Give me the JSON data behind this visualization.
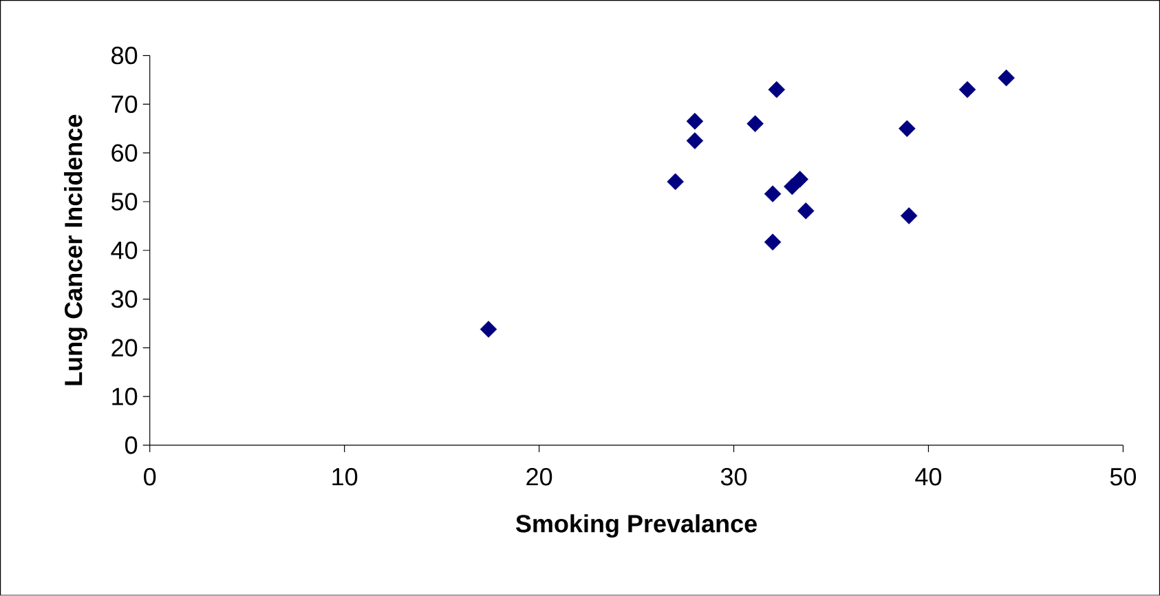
{
  "chart_data": {
    "type": "scatter",
    "xlabel": "Smoking Prevalance",
    "ylabel": "Lung Cancer Incidence",
    "x": [
      17.4,
      27.0,
      28.0,
      28.0,
      31.1,
      32.2,
      32.0,
      32.0,
      33.0,
      33.4,
      33.7,
      38.9,
      39.0,
      42.0,
      44.0
    ],
    "values": [
      23.8,
      54.1,
      66.5,
      62.5,
      66.0,
      73.0,
      51.6,
      41.7,
      53.1,
      54.6,
      48.1,
      65.0,
      47.1,
      73.0,
      75.4
    ],
    "color": "#000080",
    "marker": "diamond",
    "grid": false,
    "xlim": [
      0,
      50
    ],
    "xticks": [
      0,
      10,
      20,
      30,
      40,
      50
    ],
    "ylim": [
      0,
      80
    ],
    "yticks": [
      0,
      10,
      20,
      30,
      40,
      50,
      60,
      70,
      80
    ]
  }
}
